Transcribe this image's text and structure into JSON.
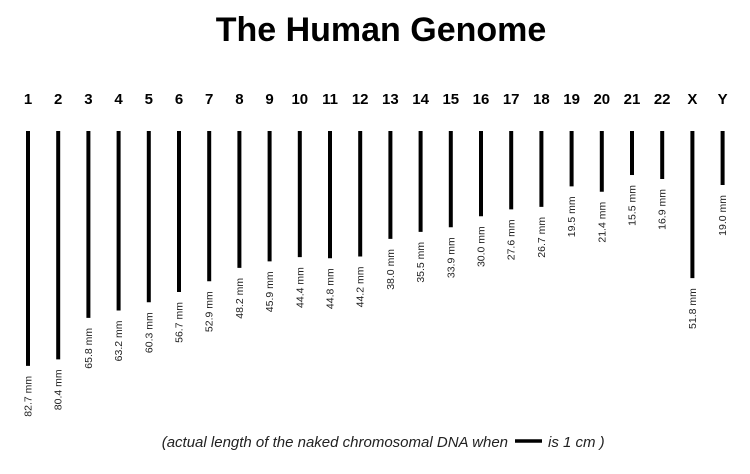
{
  "chart_data": {
    "type": "bar",
    "title": "The Human Genome",
    "categories": [
      "1",
      "2",
      "3",
      "4",
      "5",
      "6",
      "7",
      "8",
      "9",
      "10",
      "11",
      "12",
      "13",
      "14",
      "15",
      "16",
      "17",
      "18",
      "19",
      "20",
      "21",
      "22",
      "X",
      "Y"
    ],
    "values": [
      82.7,
      80.4,
      65.8,
      63.2,
      60.3,
      56.7,
      52.9,
      48.2,
      45.9,
      44.4,
      44.8,
      44.2,
      38.0,
      35.5,
      33.9,
      30.0,
      27.6,
      26.7,
      19.5,
      21.4,
      15.5,
      16.9,
      51.8,
      19.0
    ],
    "value_labels": [
      "82.7 mm",
      "80.4 mm",
      "65.8 mm",
      "63.2 mm",
      "60.3 mm",
      "56.7 mm",
      "52.9 mm",
      "48.2 mm",
      "45.9 mm",
      "44.4 mm",
      "44.8 mm",
      "44.2 mm",
      "38.0 mm",
      "35.5 mm",
      "33.9 mm",
      "30.0 mm",
      "27.6 mm",
      "26.7 mm",
      "19.5 mm",
      "21.4 mm",
      "15.5 mm",
      "16.9 mm",
      "51.8 mm",
      "19.0 mm"
    ],
    "unit": "mm",
    "orientation": "vertical-downward",
    "bar_color": "#000000"
  },
  "footnote": {
    "before": "(actual length of the naked chromosomal DNA when",
    "after": "is 1 cm )",
    "scale_bar_length_cm": 1
  }
}
